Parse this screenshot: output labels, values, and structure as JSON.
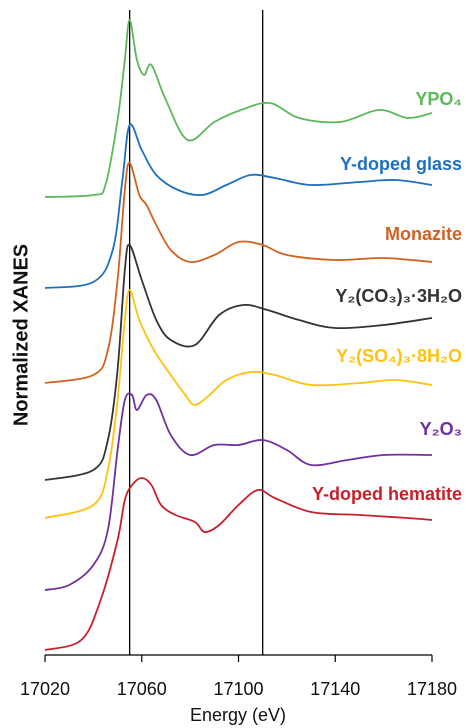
{
  "chart_data": {
    "type": "line",
    "xlabel": "Energy (eV)",
    "ylabel": "Normalized XANES",
    "xlim": [
      17020,
      17180
    ],
    "xticks": [
      17020,
      17060,
      17100,
      17140,
      17180
    ],
    "ylim": [
      0,
      6.45
    ],
    "vlines": [
      17055,
      17110
    ],
    "vline_color": "#000000",
    "series": [
      {
        "name": "YPO₄",
        "color": "#5cb85c",
        "x": [
          17020,
          17040,
          17045,
          17050,
          17053,
          17055,
          17058,
          17061,
          17064,
          17070,
          17079,
          17090,
          17101,
          17113,
          17125,
          17142,
          17158,
          17170,
          17180
        ],
        "values": [
          4.58,
          4.6,
          4.7,
          5.35,
          5.95,
          6.35,
          5.95,
          5.8,
          5.9,
          5.55,
          5.15,
          5.33,
          5.45,
          5.52,
          5.37,
          5.33,
          5.45,
          5.37,
          5.42
        ]
      },
      {
        "name": "Y-doped glass",
        "color": "#1f6fc0",
        "x": [
          17020,
          17040,
          17048,
          17052,
          17055,
          17060,
          17066,
          17075,
          17085,
          17095,
          17105,
          17115,
          17130,
          17150,
          17165,
          17180
        ],
        "values": [
          3.67,
          3.73,
          4.05,
          4.75,
          5.3,
          5.05,
          4.8,
          4.65,
          4.6,
          4.7,
          4.8,
          4.77,
          4.7,
          4.73,
          4.75,
          4.7
        ]
      },
      {
        "name": "Monazite",
        "color": "#d2601f",
        "x": [
          17020,
          17040,
          17046,
          17050,
          17053,
          17055,
          17059,
          17062,
          17066,
          17072,
          17080,
          17090,
          17100,
          17110,
          17120,
          17140,
          17160,
          17180
        ],
        "values": [
          2.72,
          2.8,
          3.05,
          3.75,
          4.65,
          4.92,
          4.6,
          4.5,
          4.3,
          4.05,
          3.93,
          4.0,
          4.13,
          4.1,
          4.0,
          3.95,
          3.97,
          3.93
        ]
      },
      {
        "name": "Y₂(CO₃)₃·3H₂O",
        "color": "#333333",
        "x": [
          17020,
          17040,
          17046,
          17050,
          17053,
          17055,
          17060,
          17066,
          17072,
          17082,
          17092,
          17102,
          17112,
          17125,
          17140,
          17160,
          17180
        ],
        "values": [
          1.75,
          1.85,
          2.15,
          2.85,
          3.85,
          4.1,
          3.75,
          3.35,
          3.15,
          3.1,
          3.4,
          3.5,
          3.45,
          3.35,
          3.27,
          3.3,
          3.37
        ]
      },
      {
        "name": "Y₂(SO₄)₃·8H₂O",
        "color": "#ffc20e",
        "x": [
          17020,
          17040,
          17046,
          17050,
          17053,
          17055,
          17059,
          17065,
          17072,
          17078,
          17082,
          17088,
          17095,
          17105,
          17115,
          17130,
          17150,
          17165,
          17180
        ],
        "values": [
          1.37,
          1.5,
          1.85,
          2.55,
          3.35,
          3.65,
          3.35,
          3.05,
          2.8,
          2.6,
          2.5,
          2.6,
          2.75,
          2.83,
          2.8,
          2.7,
          2.72,
          2.75,
          2.7
        ]
      },
      {
        "name": "Y₂O₃",
        "color": "#7030a0",
        "x": [
          17020,
          17030,
          17040,
          17046,
          17050,
          17053,
          17056,
          17058,
          17062,
          17066,
          17072,
          17080,
          17090,
          17100,
          17110,
          17120,
          17130,
          17145,
          17160,
          17180
        ],
        "values": [
          0.65,
          0.7,
          0.9,
          1.25,
          2.05,
          2.55,
          2.6,
          2.45,
          2.6,
          2.55,
          2.2,
          2.0,
          2.1,
          2.1,
          2.15,
          2.05,
          1.9,
          1.95,
          2.0,
          2.0
        ]
      },
      {
        "name": "Y-doped hematite",
        "color": "#c8202a",
        "x": [
          17020,
          17035,
          17043,
          17050,
          17053,
          17056,
          17060,
          17064,
          17068,
          17074,
          17082,
          17086,
          17092,
          17100,
          17108,
          17115,
          17130,
          17150,
          17170,
          17180
        ],
        "values": [
          0.05,
          0.15,
          0.55,
          1.15,
          1.55,
          1.7,
          1.77,
          1.7,
          1.5,
          1.4,
          1.33,
          1.23,
          1.3,
          1.5,
          1.65,
          1.57,
          1.43,
          1.4,
          1.37,
          1.35
        ]
      }
    ]
  }
}
